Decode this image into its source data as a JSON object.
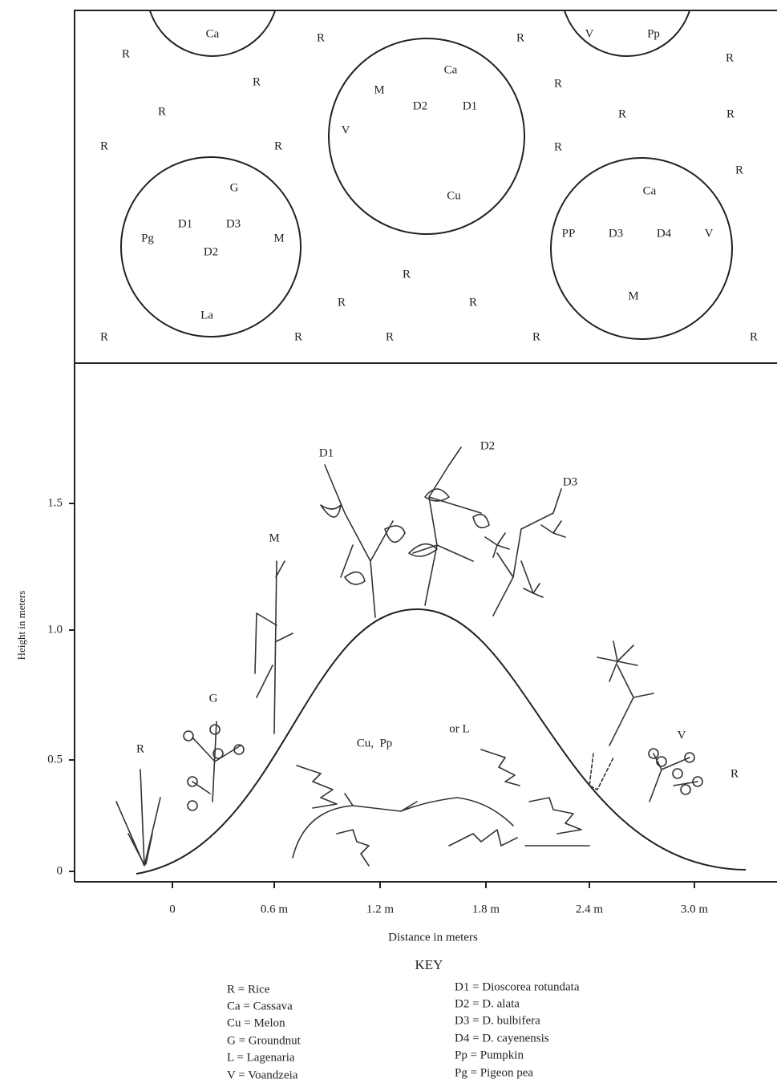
{
  "plan": {
    "circles": [
      {
        "labels": [
          "Ca"
        ]
      },
      {
        "labels": [
          "Ca",
          "M",
          "D2",
          "D1",
          "V",
          "Cu"
        ]
      },
      {
        "labels": [
          "V",
          "Pp"
        ]
      },
      {
        "labels": [
          "G",
          "D1",
          "D3",
          "Pg",
          "M",
          "D2",
          "La"
        ]
      },
      {
        "labels": [
          "Ca",
          "PP",
          "D3",
          "D4",
          "V",
          "M"
        ]
      }
    ],
    "field_labels": [
      "R",
      "R",
      "R",
      "R",
      "R",
      "R",
      "R",
      "R",
      "R",
      "R",
      "R",
      "R",
      "R",
      "R",
      "R",
      "R",
      "R",
      "R",
      "R",
      "R",
      "R"
    ]
  },
  "profile": {
    "y_axis_label": "Height in meters",
    "x_axis_label": "Distance in meters",
    "yticks": [
      "0",
      "0.5",
      "1.0",
      "1.5"
    ],
    "xticks": [
      "0",
      "0.6 m",
      "1.2 m",
      "1.8 m",
      "2.4 m",
      "3.0 m"
    ],
    "plant_labels": [
      "R",
      "G",
      "M",
      "D1",
      "D2",
      "D3",
      "Cu,  Pp",
      "or L",
      "V",
      "R"
    ]
  },
  "key": {
    "title": "KEY",
    "left": [
      "R = Rice",
      "Ca = Cassava",
      "Cu = Melon",
      "G = Groundnut",
      "L = Lagenaria",
      "V = Voandzeia"
    ],
    "right": [
      "D1 = Dioscorea rotundata",
      "D2 = D. alata",
      "D3 = D. bulbifera",
      "D4 = D. cayenensis",
      "Pp = Pumpkin",
      "Pg = Pigeon pea"
    ]
  }
}
